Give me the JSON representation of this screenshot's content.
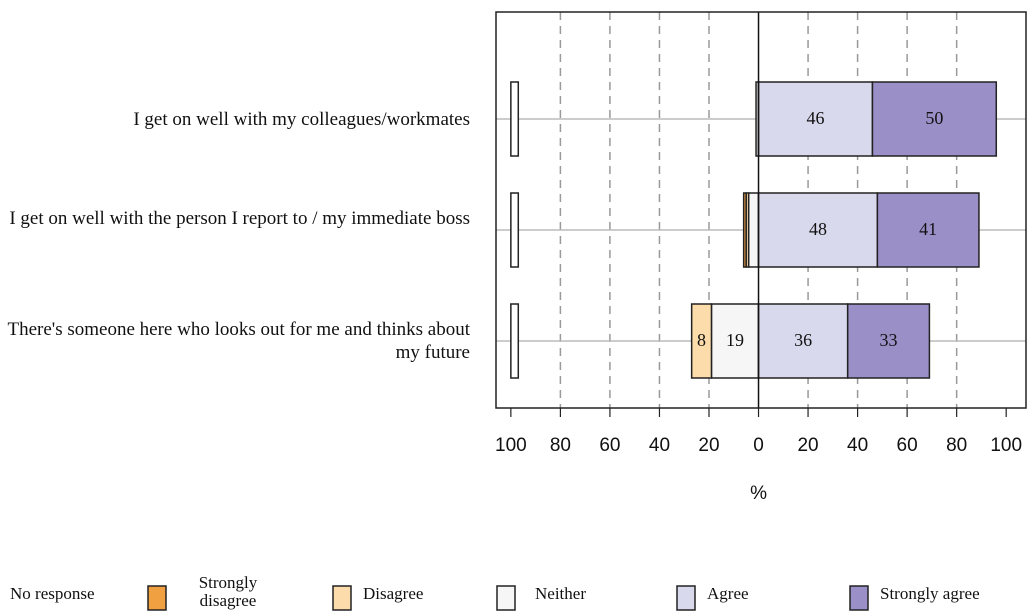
{
  "chart_data": {
    "type": "diverging-bar",
    "categories": [
      "I get on well with my colleagues/workmates",
      "I get on well with the person I report to / my immediate boss",
      "There's someone here who looks out for me and thinks about my future"
    ],
    "series": [
      {
        "name": "No response",
        "color": "#ffffff",
        "values": [
          3,
          3,
          3
        ]
      },
      {
        "name": "Strongly disagree",
        "color": "#f0a040",
        "values": [
          0,
          1,
          0
        ]
      },
      {
        "name": "Disagree",
        "color": "#fbdcaa",
        "values": [
          0,
          1,
          8
        ]
      },
      {
        "name": "Neither",
        "color": "#f6f6f6",
        "values": [
          1,
          4,
          19
        ]
      },
      {
        "name": "Agree",
        "color": "#d8d9ec",
        "values": [
          46,
          48,
          36
        ]
      },
      {
        "name": "Strongly agree",
        "color": "#9b8fc7",
        "values": [
          50,
          41,
          33
        ]
      }
    ],
    "xlabel": "%",
    "xlim": [
      -106,
      108
    ],
    "xticks": [
      {
        "value": -100,
        "label": "100"
      },
      {
        "value": -80,
        "label": "80"
      },
      {
        "value": -60,
        "label": "60"
      },
      {
        "value": -40,
        "label": "40"
      },
      {
        "value": -20,
        "label": "20"
      },
      0,
      20,
      40,
      60,
      80,
      100
    ],
    "grid": true
  }
}
